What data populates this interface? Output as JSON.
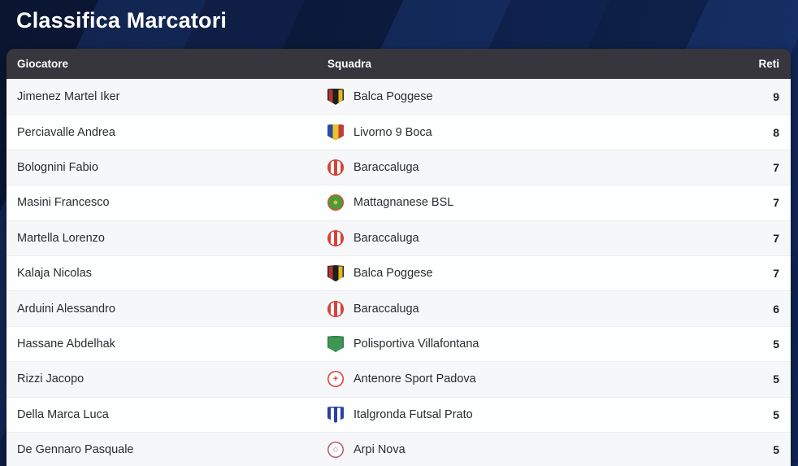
{
  "page": {
    "title": "Classifica Marcatori"
  },
  "colors": {
    "page_background": "#0c1c40",
    "header_bar": "#36363c",
    "row_alt": "#f6f7f8",
    "row_base": "#fdfefe",
    "title_text": "#ffffff"
  },
  "table": {
    "headers": {
      "player": "Giocatore",
      "team": "Squadra",
      "goals": "Reti"
    },
    "rows": [
      {
        "player": "Jimenez Martel Iker",
        "team": "Balca Poggese",
        "goals": 9,
        "badge": {
          "shape": "shield",
          "colors": [
            "#b5342c",
            "#1e1e24",
            "#e5ba1c"
          ],
          "ring": "#26262c"
        }
      },
      {
        "player": "Perciavalle Andrea",
        "team": "Livorno 9 Boca",
        "goals": 8,
        "badge": {
          "shape": "shield",
          "colors": [
            "#2a4aa0",
            "#e8c32a",
            "#c23b3b"
          ]
        }
      },
      {
        "player": "Bolognini Fabio",
        "team": "Baraccaluga",
        "goals": 7,
        "badge": {
          "shape": "circle",
          "colors": [
            "#d8423a",
            "#ffffff",
            "#d8423a",
            "#ffffff",
            "#d8423a"
          ],
          "ring": "#d8423a"
        }
      },
      {
        "player": "Masini Francesco",
        "team": "Mattagnanese BSL",
        "goals": 7,
        "badge": {
          "shape": "circle",
          "colors": [
            "#4b9a3f"
          ],
          "ring": "#cf5430",
          "glyph": "●",
          "glyph_color": "#e7c32a"
        }
      },
      {
        "player": "Martella Lorenzo",
        "team": "Baraccaluga",
        "goals": 7,
        "badge": {
          "shape": "circle",
          "colors": [
            "#d8423a",
            "#ffffff",
            "#d8423a",
            "#ffffff",
            "#d8423a"
          ],
          "ring": "#d8423a"
        }
      },
      {
        "player": "Kalaja Nicolas",
        "team": "Balca Poggese",
        "goals": 7,
        "badge": {
          "shape": "shield",
          "colors": [
            "#b5342c",
            "#1e1e24",
            "#e5ba1c"
          ],
          "ring": "#26262c"
        }
      },
      {
        "player": "Arduini Alessandro",
        "team": "Baraccaluga",
        "goals": 6,
        "badge": {
          "shape": "circle",
          "colors": [
            "#d8423a",
            "#ffffff",
            "#d8423a",
            "#ffffff",
            "#d8423a"
          ],
          "ring": "#d8423a"
        }
      },
      {
        "player": "Hassane Abdelhak",
        "team": "Polisportiva Villafontana",
        "goals": 5,
        "badge": {
          "shape": "shield",
          "colors": [
            "#3f9553"
          ],
          "ring": "#2d7a40"
        }
      },
      {
        "player": "Rizzi Jacopo",
        "team": "Antenore Sport Padova",
        "goals": 5,
        "badge": {
          "shape": "circle",
          "colors": [
            "#ffffff"
          ],
          "ring": "#d93a36",
          "glyph": "+",
          "glyph_color": "#d93a36"
        }
      },
      {
        "player": "Della Marca Luca",
        "team": "Italgronda Futsal Prato",
        "goals": 5,
        "badge": {
          "shape": "shield",
          "colors": [
            "#2a3fa8",
            "#ffffff",
            "#2a3fa8",
            "#ffffff",
            "#2a3fa8"
          ],
          "ring": "#2a3fa8"
        }
      },
      {
        "player": "De Gennaro Pasquale",
        "team": "Arpi Nova",
        "goals": 5,
        "badge": {
          "shape": "circle",
          "colors": [
            "#ffffff"
          ],
          "ring": "#b8596e",
          "glyph": "○",
          "glyph_color": "#b8596e"
        }
      }
    ]
  }
}
